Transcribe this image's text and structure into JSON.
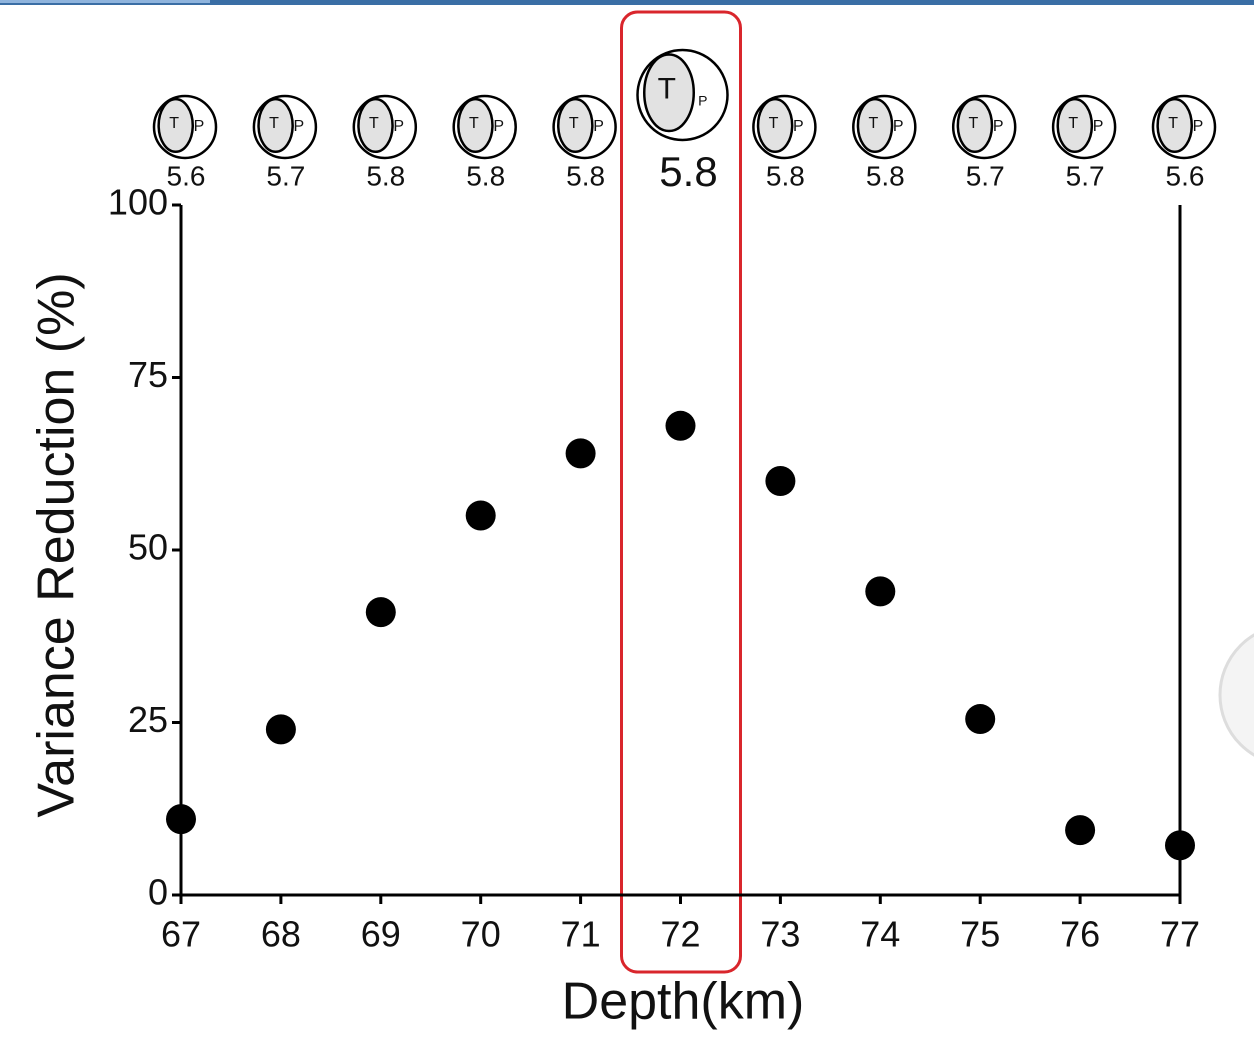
{
  "chart_data": {
    "type": "scatter",
    "x_label": "Depth(km)",
    "y_label": "Variance Reduction (%)",
    "x": [
      67,
      68,
      69,
      70,
      71,
      72,
      73,
      74,
      75,
      76,
      77
    ],
    "values": [
      11,
      24,
      41,
      55,
      64,
      68,
      60,
      44,
      25.5,
      9.4,
      7.2
    ],
    "magnitudes": [
      5.6,
      5.7,
      5.8,
      5.8,
      5.8,
      5.8,
      5.8,
      5.8,
      5.7,
      5.7,
      5.6
    ],
    "focal_labels": {
      "t": "T",
      "p": "P"
    },
    "highlight_x": 72,
    "color": "#000000",
    "xlim": [
      67,
      77
    ],
    "xticks": [
      67,
      68,
      69,
      70,
      71,
      72,
      73,
      74,
      75,
      76,
      77
    ],
    "ylim": [
      0,
      100
    ],
    "yticks": [
      0,
      25,
      50,
      75,
      100
    ]
  }
}
